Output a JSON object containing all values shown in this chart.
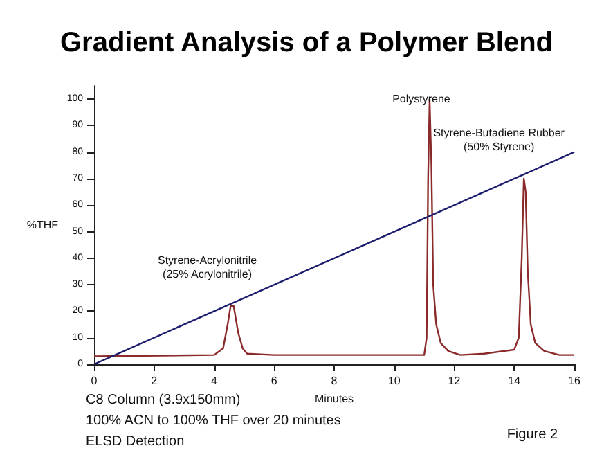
{
  "chart_data": {
    "type": "line",
    "title": "Gradient Analysis of a Polymer Blend",
    "xlabel": "Minutes",
    "ylabel": "%THF",
    "xlim": [
      0,
      16
    ],
    "xticks": [
      0,
      2,
      4,
      6,
      8,
      10,
      12,
      14,
      16
    ],
    "ylim": [
      0,
      105
    ],
    "yticks": [
      0,
      10,
      20,
      30,
      40,
      50,
      60,
      70,
      80,
      90,
      100
    ],
    "grid": false,
    "marker": "none",
    "line_style": "solid",
    "series": [
      {
        "color": "#8b2a2a",
        "x": [
          0,
          4.0,
          4.3,
          4.45,
          4.55,
          4.65,
          4.8,
          4.95,
          5.1,
          6,
          11.0,
          11.08,
          11.13,
          11.18,
          11.24,
          11.3,
          11.4,
          11.55,
          11.8,
          12.2,
          13.0,
          14.0,
          14.15,
          14.25,
          14.32,
          14.38,
          14.45,
          14.55,
          14.7,
          15.0,
          15.5,
          16
        ],
        "values": [
          3,
          3.5,
          6,
          15,
          22,
          22,
          12,
          6,
          4,
          3.5,
          3.5,
          10,
          70,
          100,
          75,
          30,
          15,
          8,
          5,
          3.5,
          4,
          5.5,
          10,
          40,
          70,
          65,
          35,
          15,
          8,
          5,
          3.5,
          3.5
        ]
      },
      {
        "color": "#1c1c6e",
        "x": [
          0,
          16
        ],
        "values": [
          0,
          80
        ]
      }
    ],
    "annotations": [
      {
        "text": "Styrene-Acrylonitrile\n(25% Acrylonitrile)",
        "x": 4.6,
        "y": 22
      },
      {
        "text": "Polystyrene",
        "x": 11.18,
        "y": 100
      },
      {
        "text": "Styrene-Butadiene Rubber\n(50% Styrene)",
        "x": 14.32,
        "y": 70
      },
      "C8 Column (3.9x150mm)",
      "100% ACN to 100% THF over 20 minutes",
      "ELSD Detection",
      "Figure 2"
    ]
  }
}
